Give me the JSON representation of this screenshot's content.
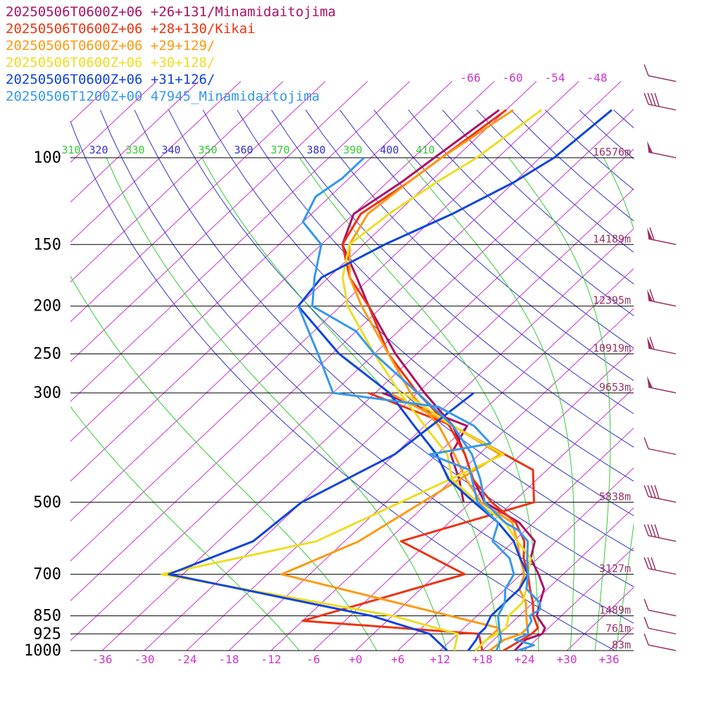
{
  "colors": {
    "isobar": "#000000",
    "isotherm": "#cc33cc",
    "dry_adiabat": "#3333cc",
    "moist_adiabat": "#33cc33",
    "label_magenta": "#cc33cc",
    "label_blue": "#3333cc",
    "label_green": "#33cc33",
    "height_label": "#993366",
    "barb": "#993366"
  },
  "legend": [
    {
      "text": "20250506T0600Z+06 +26+131/Minamidaitojima",
      "color": "#aa1166"
    },
    {
      "text": "20250506T0600Z+06 +28+130/Kikai",
      "color": "#ee3311"
    },
    {
      "text": "20250506T0600Z+06 +29+129/",
      "color": "#ff9911"
    },
    {
      "text": "20250506T0600Z+06 +30+128/",
      "color": "#eedd22"
    },
    {
      "text": "20250506T0600Z+06 +31+126/",
      "color": "#1144dd"
    },
    {
      "text": "20250506T1200Z+00 47945_Minamidaitojima",
      "color": "#3399ee"
    }
  ],
  "chart_data": {
    "type": "line",
    "chart_kind": "skew-T log-p sounding",
    "pressure_ticks": [
      "100",
      "150",
      "200",
      "250",
      "300",
      "500",
      "700",
      "850",
      "925",
      "1000"
    ],
    "pressure_values": [
      100,
      150,
      200,
      250,
      300,
      500,
      700,
      850,
      925,
      1000
    ],
    "temperature_ticks": [
      "-36",
      "-30",
      "-24",
      "-18",
      "-12",
      "-6",
      "+0",
      "+6",
      "+12",
      "+18",
      "+24",
      "+30",
      "+36"
    ],
    "upper_isotherm_labels": [
      "-66",
      "-60",
      "-54",
      "-48"
    ],
    "theta_labels": [
      "310",
      "320",
      "330",
      "340",
      "350",
      "360",
      "370",
      "380",
      "390",
      "400",
      "410"
    ],
    "height_labels": [
      {
        "p": 100,
        "text": "16576m"
      },
      {
        "p": 150,
        "text": "14189m"
      },
      {
        "p": 200,
        "text": "12395m"
      },
      {
        "p": 250,
        "text": "10919m"
      },
      {
        "p": 300,
        "text": "9653m"
      },
      {
        "p": 500,
        "text": "5838m"
      },
      {
        "p": 700,
        "text": "3127m"
      },
      {
        "p": 850,
        "text": "1489m"
      },
      {
        "p": 925,
        "text": "761m"
      },
      {
        "p": 1000,
        "text": "83m"
      }
    ],
    "series": [
      {
        "name": "20250506T0600Z+06 +26+131/Minamidaitojima",
        "color": "#aa1166",
        "kind": "temperature",
        "points": [
          [
            1000,
            22.6
          ],
          [
            950,
            22.5
          ],
          [
            925,
            24
          ],
          [
            900,
            23.5
          ],
          [
            850,
            20.5
          ],
          [
            800,
            19
          ],
          [
            750,
            17.5
          ],
          [
            700,
            14.5
          ],
          [
            650,
            11
          ],
          [
            600,
            9
          ],
          [
            550,
            4
          ],
          [
            500,
            -4
          ],
          [
            450,
            -9
          ],
          [
            400,
            -14
          ],
          [
            350,
            -20
          ],
          [
            300,
            -29
          ],
          [
            250,
            -39
          ],
          [
            200,
            -50
          ],
          [
            175,
            -56
          ],
          [
            150,
            -63
          ],
          [
            130,
            -66
          ],
          [
            112,
            -64
          ],
          [
            100,
            -63
          ],
          [
            80,
            -61
          ]
        ]
      },
      {
        "name": "20250506T0600Z+06 +26+131/Minamidaitojima",
        "color": "#aa1166",
        "kind": "dewpoint",
        "points": [
          [
            300,
            -35
          ],
          [
            350,
            -18
          ],
          [
            400,
            -16
          ],
          [
            450,
            -11
          ],
          [
            500,
            -7
          ]
        ]
      },
      {
        "name": "20250506T0600Z+06 +28+130/Kikai",
        "color": "#ee3311",
        "kind": "temperature",
        "points": [
          [
            1000,
            21
          ],
          [
            950,
            22
          ],
          [
            925,
            22.5
          ],
          [
            900,
            22.5
          ],
          [
            850,
            20
          ],
          [
            800,
            18
          ],
          [
            750,
            15.5
          ],
          [
            700,
            13
          ],
          [
            650,
            10
          ],
          [
            600,
            7.5
          ],
          [
            550,
            3.5
          ],
          [
            500,
            -3
          ],
          [
            450,
            -9
          ],
          [
            400,
            -14
          ],
          [
            350,
            -20.5
          ],
          [
            300,
            -30
          ],
          [
            250,
            -40
          ],
          [
            200,
            -50
          ],
          [
            175,
            -57
          ],
          [
            150,
            -63
          ],
          [
            130,
            -65
          ],
          [
            112,
            -63
          ],
          [
            100,
            -62
          ],
          [
            80,
            -60
          ]
        ]
      },
      {
        "name": "20250506T0600Z+06 +28+130/Kikai",
        "color": "#ee3311",
        "kind": "dewpoint",
        "points": [
          [
            1000,
            18
          ],
          [
            925,
            15
          ],
          [
            870,
            -12
          ],
          [
            700,
            4
          ],
          [
            600,
            -10
          ],
          [
            500,
            3
          ],
          [
            430,
            -2
          ],
          [
            350,
            -20
          ],
          [
            300,
            -37
          ]
        ]
      },
      {
        "name": "20250506T0600Z+06 +29+129/",
        "color": "#ff9911",
        "kind": "temperature",
        "points": [
          [
            1000,
            19
          ],
          [
            950,
            19.5
          ],
          [
            925,
            21
          ],
          [
            900,
            21
          ],
          [
            850,
            19
          ],
          [
            800,
            17
          ],
          [
            750,
            14
          ],
          [
            700,
            12.5
          ],
          [
            650,
            9.5
          ],
          [
            600,
            6.5
          ],
          [
            550,
            3
          ],
          [
            500,
            -4.5
          ],
          [
            450,
            -10
          ],
          [
            400,
            -15.5
          ],
          [
            350,
            -22
          ],
          [
            300,
            -31
          ],
          [
            250,
            -40
          ],
          [
            200,
            -51
          ],
          [
            175,
            -57
          ],
          [
            150,
            -62
          ],
          [
            130,
            -64
          ],
          [
            112,
            -63
          ],
          [
            100,
            -62
          ],
          [
            80,
            -59
          ]
        ]
      },
      {
        "name": "20250506T0600Z+06 +29+129/",
        "color": "#ff9911",
        "kind": "dewpoint",
        "points": [
          [
            1000,
            17
          ],
          [
            925,
            17
          ],
          [
            900,
            17
          ],
          [
            700,
            -22
          ],
          [
            600,
            -16
          ],
          [
            400,
            -9
          ],
          [
            350,
            -20
          ],
          [
            300,
            -34
          ]
        ]
      },
      {
        "name": "20250506T0600Z+06 +30+128/",
        "color": "#eedd22",
        "kind": "temperature",
        "points": [
          [
            1000,
            17
          ],
          [
            950,
            17
          ],
          [
            925,
            17.5
          ],
          [
            900,
            18
          ],
          [
            850,
            16.5
          ],
          [
            800,
            16.5
          ],
          [
            750,
            15
          ],
          [
            700,
            13
          ],
          [
            650,
            11
          ],
          [
            600,
            6.5
          ],
          [
            550,
            2
          ],
          [
            500,
            -5
          ],
          [
            450,
            -12
          ],
          [
            400,
            -16.5
          ],
          [
            350,
            -24
          ],
          [
            300,
            -32.5
          ],
          [
            250,
            -42
          ],
          [
            200,
            -53
          ],
          [
            175,
            -58
          ],
          [
            150,
            -62
          ],
          [
            130,
            -61
          ],
          [
            112,
            -59
          ],
          [
            100,
            -57
          ],
          [
            80,
            -55
          ]
        ]
      },
      {
        "name": "20250506T0600Z+06 +30+128/",
        "color": "#eedd22",
        "kind": "dewpoint",
        "points": [
          [
            1000,
            14
          ],
          [
            925,
            12
          ],
          [
            850,
            0
          ],
          [
            700,
            -39
          ],
          [
            600,
            -22
          ],
          [
            400,
            -8.5
          ],
          [
            350,
            -20
          ],
          [
            300,
            -32
          ]
        ]
      },
      {
        "name": "20250506T0600Z+06 +31+126/",
        "color": "#1144dd",
        "kind": "temperature",
        "points": [
          [
            1000,
            16
          ],
          [
            950,
            15.5
          ],
          [
            925,
            15
          ],
          [
            900,
            15
          ],
          [
            850,
            14
          ],
          [
            800,
            14
          ],
          [
            750,
            14
          ],
          [
            700,
            13
          ],
          [
            650,
            9.5
          ],
          [
            600,
            6
          ],
          [
            550,
            1
          ],
          [
            500,
            -5.5
          ],
          [
            450,
            -12.5
          ],
          [
            400,
            -18
          ],
          [
            350,
            -25.5
          ],
          [
            300,
            -34
          ],
          [
            250,
            -47
          ],
          [
            200,
            -60
          ],
          [
            175,
            -61
          ],
          [
            150,
            -57
          ],
          [
            130,
            -52
          ],
          [
            112,
            -48
          ],
          [
            100,
            -46
          ],
          [
            80,
            -45
          ]
        ]
      },
      {
        "name": "20250506T0600Z+06 +31+126/",
        "color": "#1144dd",
        "kind": "dewpoint",
        "points": [
          [
            1000,
            13
          ],
          [
            925,
            8
          ],
          [
            850,
            -3
          ],
          [
            700,
            -38
          ],
          [
            600,
            -31
          ],
          [
            500,
            -30
          ],
          [
            400,
            -24
          ],
          [
            300,
            -22
          ]
        ]
      },
      {
        "name": "20250506T1200Z+00 47945_Minamidaitojima",
        "color": "#3399ee",
        "kind": "temperature",
        "points": [
          [
            1000,
            23
          ],
          [
            975,
            24.5
          ],
          [
            950,
            21
          ],
          [
            925,
            22
          ],
          [
            900,
            21
          ],
          [
            870,
            20.5
          ],
          [
            850,
            19.5
          ],
          [
            825,
            20
          ],
          [
            800,
            19
          ],
          [
            750,
            15
          ],
          [
            700,
            13
          ],
          [
            650,
            10.5
          ],
          [
            600,
            8
          ],
          [
            570,
            5
          ],
          [
            550,
            2
          ],
          [
            500,
            -4
          ],
          [
            450,
            -8
          ],
          [
            400,
            -13
          ],
          [
            350,
            -20
          ],
          [
            300,
            -30
          ],
          [
            250,
            -42
          ],
          [
            225,
            -48
          ],
          [
            200,
            -58
          ],
          [
            175,
            -62
          ],
          [
            150,
            -66
          ],
          [
            135,
            -72
          ],
          [
            120,
            -74
          ],
          [
            110,
            -73
          ],
          [
            100,
            -73
          ]
        ]
      },
      {
        "name": "20250506T1200Z+00 47945_Minamidaitojima",
        "color": "#3399ee",
        "kind": "dewpoint",
        "points": [
          [
            1000,
            20
          ],
          [
            950,
            19
          ],
          [
            900,
            17
          ],
          [
            850,
            15
          ],
          [
            800,
            14
          ],
          [
            750,
            12
          ],
          [
            700,
            11
          ],
          [
            650,
            8
          ],
          [
            600,
            3
          ],
          [
            550,
            1
          ],
          [
            500,
            -5
          ],
          [
            430,
            -11
          ],
          [
            400,
            -19
          ],
          [
            380,
            -12
          ],
          [
            350,
            -17
          ],
          [
            320,
            -25
          ],
          [
            300,
            -42
          ],
          [
            250,
            -50
          ],
          [
            200,
            -60
          ]
        ]
      }
    ],
    "wind_barbs": [
      {
        "p": 1000,
        "knots": 10
      },
      {
        "p": 925,
        "knots": 10
      },
      {
        "p": 850,
        "knots": 10
      },
      {
        "p": 700,
        "knots": 30
      },
      {
        "p": 600,
        "knots": 40
      },
      {
        "p": 500,
        "knots": 40
      },
      {
        "p": 400,
        "knots": 10
      },
      {
        "p": 300,
        "knots": 50
      },
      {
        "p": 250,
        "knots": 55
      },
      {
        "p": 200,
        "knots": 55
      },
      {
        "p": 150,
        "knots": 60
      },
      {
        "p": 100,
        "knots": 50
      },
      {
        "p": 80,
        "knots": 40
      },
      {
        "p": 70,
        "knots": 10
      }
    ]
  }
}
